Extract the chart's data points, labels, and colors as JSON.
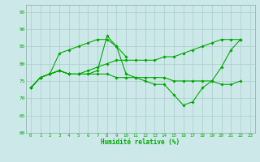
{
  "background_color": "#cce8e8",
  "grid_color": "#aacccc",
  "line_color": "#00aa00",
  "xlabel": "Humidité relative (%)",
  "xlim": [
    -0.5,
    23.5
  ],
  "ylim": [
    60,
    97
  ],
  "yticks": [
    60,
    65,
    70,
    75,
    80,
    85,
    90,
    95
  ],
  "xtick_labels": [
    "0",
    "1",
    "2",
    "3",
    "4",
    "5",
    "6",
    "7",
    "8",
    "9",
    "10",
    "11",
    "12",
    "13",
    "14",
    "15",
    "16",
    "17",
    "18",
    "19",
    "20",
    "21",
    "22",
    "23"
  ],
  "lines": [
    [
      [
        0,
        73
      ],
      [
        1,
        76
      ],
      [
        2,
        77
      ],
      [
        3,
        78
      ],
      [
        4,
        77
      ],
      [
        5,
        77
      ],
      [
        6,
        77
      ],
      [
        7,
        78
      ],
      [
        8,
        88
      ],
      [
        9,
        85
      ],
      [
        10,
        77
      ],
      [
        11,
        76
      ],
      [
        12,
        75
      ],
      [
        13,
        74
      ],
      [
        14,
        74
      ],
      [
        15,
        71
      ],
      [
        16,
        68
      ],
      [
        17,
        69
      ],
      [
        18,
        73
      ],
      [
        19,
        75
      ],
      [
        20,
        79
      ],
      [
        21,
        84
      ],
      [
        22,
        87
      ]
    ],
    [
      [
        0,
        73
      ],
      [
        1,
        76
      ],
      [
        2,
        77
      ],
      [
        3,
        83
      ],
      [
        4,
        84
      ],
      [
        5,
        85
      ],
      [
        6,
        86
      ],
      [
        7,
        87
      ],
      [
        8,
        87
      ],
      [
        9,
        85
      ],
      [
        10,
        82
      ]
    ],
    [
      [
        0,
        73
      ],
      [
        1,
        76
      ],
      [
        2,
        77
      ],
      [
        3,
        78
      ],
      [
        4,
        77
      ],
      [
        5,
        77
      ],
      [
        6,
        78
      ],
      [
        7,
        79
      ],
      [
        8,
        80
      ],
      [
        9,
        81
      ],
      [
        10,
        81
      ],
      [
        11,
        81
      ],
      [
        12,
        81
      ],
      [
        13,
        81
      ],
      [
        14,
        82
      ],
      [
        15,
        82
      ],
      [
        16,
        83
      ],
      [
        17,
        84
      ],
      [
        18,
        85
      ],
      [
        19,
        86
      ],
      [
        20,
        87
      ],
      [
        21,
        87
      ],
      [
        22,
        87
      ]
    ],
    [
      [
        0,
        73
      ],
      [
        1,
        76
      ],
      [
        2,
        77
      ],
      [
        3,
        78
      ],
      [
        4,
        77
      ],
      [
        5,
        77
      ],
      [
        6,
        77
      ],
      [
        7,
        77
      ],
      [
        8,
        77
      ],
      [
        9,
        76
      ],
      [
        10,
        76
      ],
      [
        11,
        76
      ],
      [
        12,
        76
      ],
      [
        13,
        76
      ],
      [
        14,
        76
      ],
      [
        15,
        75
      ],
      [
        16,
        75
      ],
      [
        17,
        75
      ],
      [
        18,
        75
      ],
      [
        19,
        75
      ],
      [
        20,
        74
      ],
      [
        21,
        74
      ],
      [
        22,
        75
      ]
    ]
  ]
}
